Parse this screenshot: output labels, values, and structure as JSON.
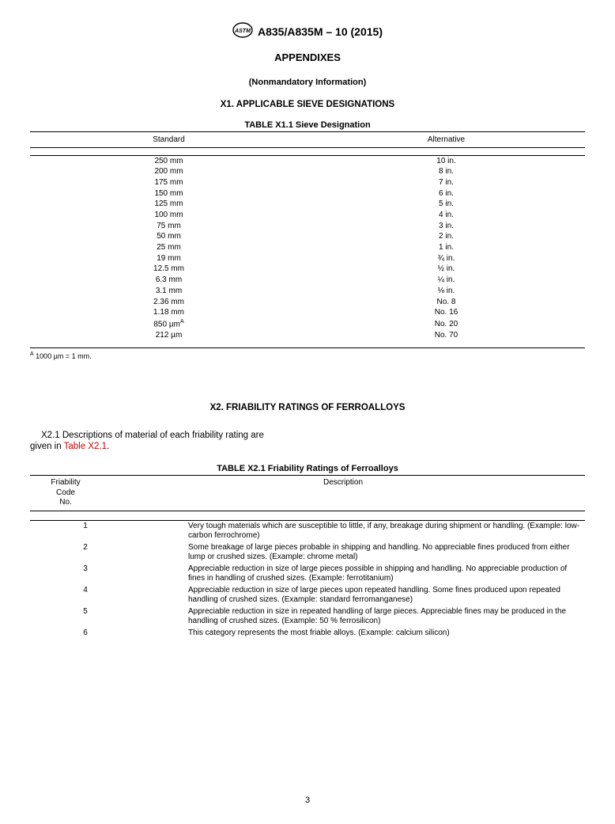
{
  "meta": {
    "doc_id": "A835/A835M – 10 (2015)",
    "page_number": "3"
  },
  "headings": {
    "appendixes": "APPENDIXES",
    "nonmandatory": "(Nonmandatory Information)",
    "x1": "X1.  APPLICABLE SIEVE DESIGNATIONS",
    "x2": "X2.    FRIABILITY RATINGS OF FERROALLOYS"
  },
  "table_x11": {
    "title": "TABLE X1.1 Sieve Designation",
    "col_standard": "Standard",
    "col_alternative": "Alternative",
    "rows": [
      {
        "std": "250 mm",
        "alt": "10 in."
      },
      {
        "std": "200 mm",
        "alt": "8 in."
      },
      {
        "std": "175 mm",
        "alt": "7 in."
      },
      {
        "std": "150 mm",
        "alt": "6 in."
      },
      {
        "std": "125 mm",
        "alt": "5 in."
      },
      {
        "std": "100 mm",
        "alt": "4 in."
      },
      {
        "std": "75 mm",
        "alt": "3 in."
      },
      {
        "std": "50 mm",
        "alt": "2 in."
      },
      {
        "std": "25 mm",
        "alt": "1 in."
      },
      {
        "std": "19 mm",
        "alt": "¾ in."
      },
      {
        "std": "12.5 mm",
        "alt": "½ in."
      },
      {
        "std": "6.3 mm",
        "alt": "¼ in."
      },
      {
        "std": "3.1 mm",
        "alt": "⅛ in."
      },
      {
        "std": "2.36 mm",
        "alt": "No. 8"
      },
      {
        "std": "1.18 mm",
        "alt": "No. 16"
      },
      {
        "std": "850 µm",
        "sup": "A",
        "alt": "No. 20"
      },
      {
        "std": "212 µm",
        "alt": "No. 70"
      }
    ],
    "footnote_marker": "A",
    "footnote_text": " 1000 µm = 1 mm."
  },
  "para_x21": {
    "lead": "X2.1",
    "body1": "  Descriptions  of  material  of  each  friability  rating  are",
    "body2": "given in ",
    "ref": "Table X2.1",
    "period": "."
  },
  "table_x21": {
    "title": "TABLE X2.1 Friability Ratings of Ferroalloys",
    "col_code_l1": "Friability",
    "col_code_l2": "Code",
    "col_code_l3": "No.",
    "col_desc": "Description",
    "rows": [
      {
        "code": "1",
        "desc": "Very tough materials which are susceptible to little, if any, breakage during shipment or handling. (Example: low-carbon ferrochrome)"
      },
      {
        "code": "2",
        "desc": "Some breakage of large pieces probable in shipping and handling. No appreciable fines produced from either lump or crushed sizes. (Example: chrome metal)"
      },
      {
        "code": "3",
        "desc": "Appreciable reduction in size of large pieces possible in shipping and handling. No appreciable production of fines in handling of crushed sizes. (Example: ferrotitanium)"
      },
      {
        "code": "4",
        "desc": "Appreciable reduction in size of large pieces upon repeated handling. Some fines produced upon repeated handling of crushed sizes. (Example: standard ferromanganese)"
      },
      {
        "code": "5",
        "desc": "Appreciable reduction in size in repeated handling of large pieces. Appreciable fines may be produced in the handling of crushed sizes. (Example: 50 % ferrosilicon)"
      },
      {
        "code": "6",
        "desc": "This category represents the most friable alloys. (Example: calcium silicon)"
      }
    ]
  },
  "style": {
    "text_color": "#000000",
    "link_color": "#cc0000",
    "background": "#ffffff",
    "base_font_family": "Arial, Helvetica, sans-serif"
  }
}
